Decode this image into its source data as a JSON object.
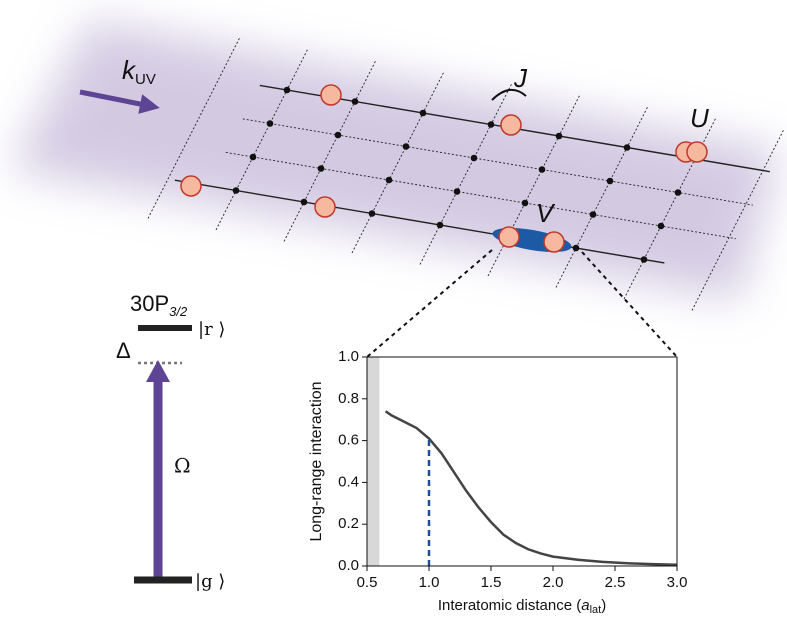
{
  "diagram": {
    "k_uv": {
      "main": "k",
      "sub": "UV"
    },
    "hopping": "J",
    "onsite": "U",
    "interaction": "V",
    "rydberg_state": {
      "main": "30P",
      "sub": "3/2"
    },
    "r_ket": "|r ⟩",
    "detuning": "Δ",
    "rabi": "Ω",
    "g_ket": "|g ⟩"
  },
  "chart_data": {
    "type": "line",
    "xlabel": {
      "main": "Interatomic distance (",
      "italic": "a",
      "sub": "lat",
      "end": ")"
    },
    "ylabel": "Long-range interaction",
    "x": [
      0.65,
      0.7,
      0.8,
      0.9,
      1.0,
      1.1,
      1.2,
      1.3,
      1.4,
      1.5,
      1.6,
      1.7,
      1.8,
      1.9,
      2.0,
      2.2,
      2.4,
      2.6,
      2.8,
      3.0
    ],
    "series": [
      {
        "name": "interaction",
        "color": "#444444",
        "values": [
          0.74,
          0.72,
          0.69,
          0.66,
          0.61,
          0.54,
          0.45,
          0.36,
          0.28,
          0.21,
          0.15,
          0.11,
          0.08,
          0.06,
          0.045,
          0.03,
          0.02,
          0.013,
          0.009,
          0.006
        ]
      }
    ],
    "xlim": [
      0.5,
      3.0
    ],
    "ylim": [
      0,
      1.0
    ],
    "xticks": [
      0.5,
      {
        "value": 1,
        "label": "1.0"
      },
      1.5,
      {
        "value": 2,
        "label": "2.0"
      },
      2.5,
      {
        "value": 3,
        "label": "3.0"
      }
    ],
    "yticks": [
      {
        "value": 0,
        "label": "0.0"
      },
      0.2,
      0.4,
      0.6,
      0.8,
      {
        "value": 1,
        "label": "1.0"
      }
    ],
    "shaded_xrange": [
      0.5,
      0.6
    ],
    "vline": {
      "x": 1,
      "y": 0.61,
      "color": "#1f4e99"
    }
  }
}
